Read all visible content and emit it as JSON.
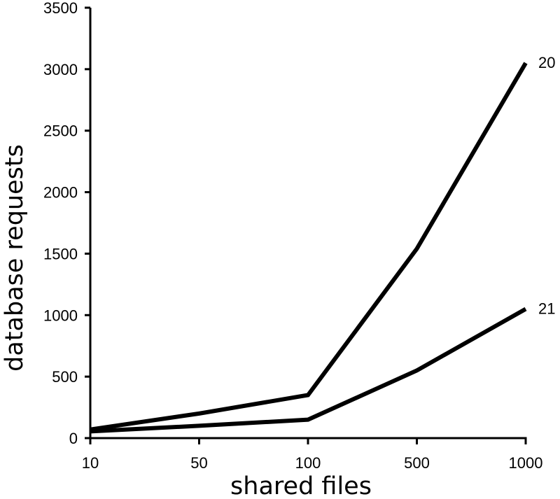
{
  "chart_data": {
    "type": "line",
    "title": "",
    "xlabel": "shared files",
    "ylabel": "database requests",
    "x_scale": "categorical",
    "categories": [
      "10",
      "50",
      "100",
      "500",
      "1000"
    ],
    "ylim": [
      0,
      3500
    ],
    "y_ticks": [
      0,
      500,
      1000,
      1500,
      2000,
      2500,
      3000,
      3500
    ],
    "grid": false,
    "legend": "none",
    "series_labels_placement": "line-end",
    "series": [
      {
        "name": "20",
        "values": [
          70,
          200,
          350,
          1540,
          3050
        ],
        "color": "#000000"
      },
      {
        "name": "21",
        "values": [
          55,
          100,
          150,
          550,
          1050
        ],
        "color": "#000000"
      }
    ]
  }
}
